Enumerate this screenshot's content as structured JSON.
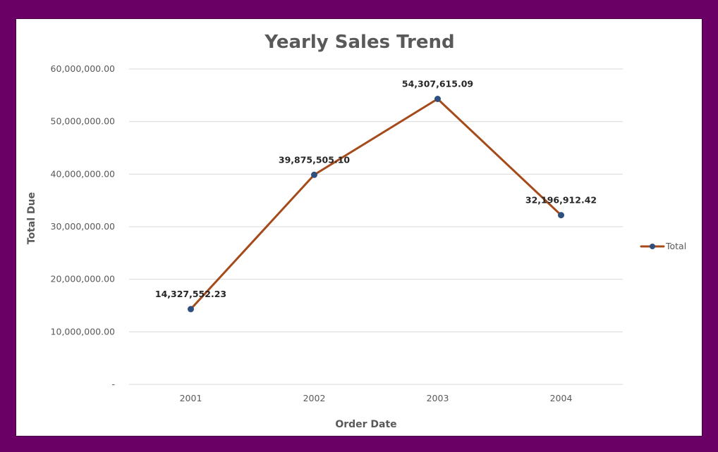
{
  "chart_data": {
    "type": "line",
    "title": "Yearly Sales Trend",
    "xlabel": "Order Date",
    "ylabel": "Total Due",
    "categories": [
      "2001",
      "2002",
      "2003",
      "2004"
    ],
    "series": [
      {
        "name": "Total",
        "values": [
          14327552.23,
          39875505.1,
          54307615.09,
          32196912.42
        ],
        "data_labels": [
          "14,327,552.23",
          "39,875,505.10",
          "54,307,615.09",
          "32,196,912.42"
        ],
        "line_color": "#a54a1a",
        "marker_color": "#2f4f7f"
      }
    ],
    "ylim": [
      0,
      60000000
    ],
    "y_ticks": [
      {
        "value": 0,
        "label": "-"
      },
      {
        "value": 10000000,
        "label": "10,000,000.00"
      },
      {
        "value": 20000000,
        "label": "20,000,000.00"
      },
      {
        "value": 30000000,
        "label": "30,000,000.00"
      },
      {
        "value": 40000000,
        "label": "40,000,000.00"
      },
      {
        "value": 50000000,
        "label": "50,000,000.00"
      },
      {
        "value": 60000000,
        "label": "60,000,000.00"
      }
    ],
    "grid": true,
    "legend_position": "right"
  }
}
